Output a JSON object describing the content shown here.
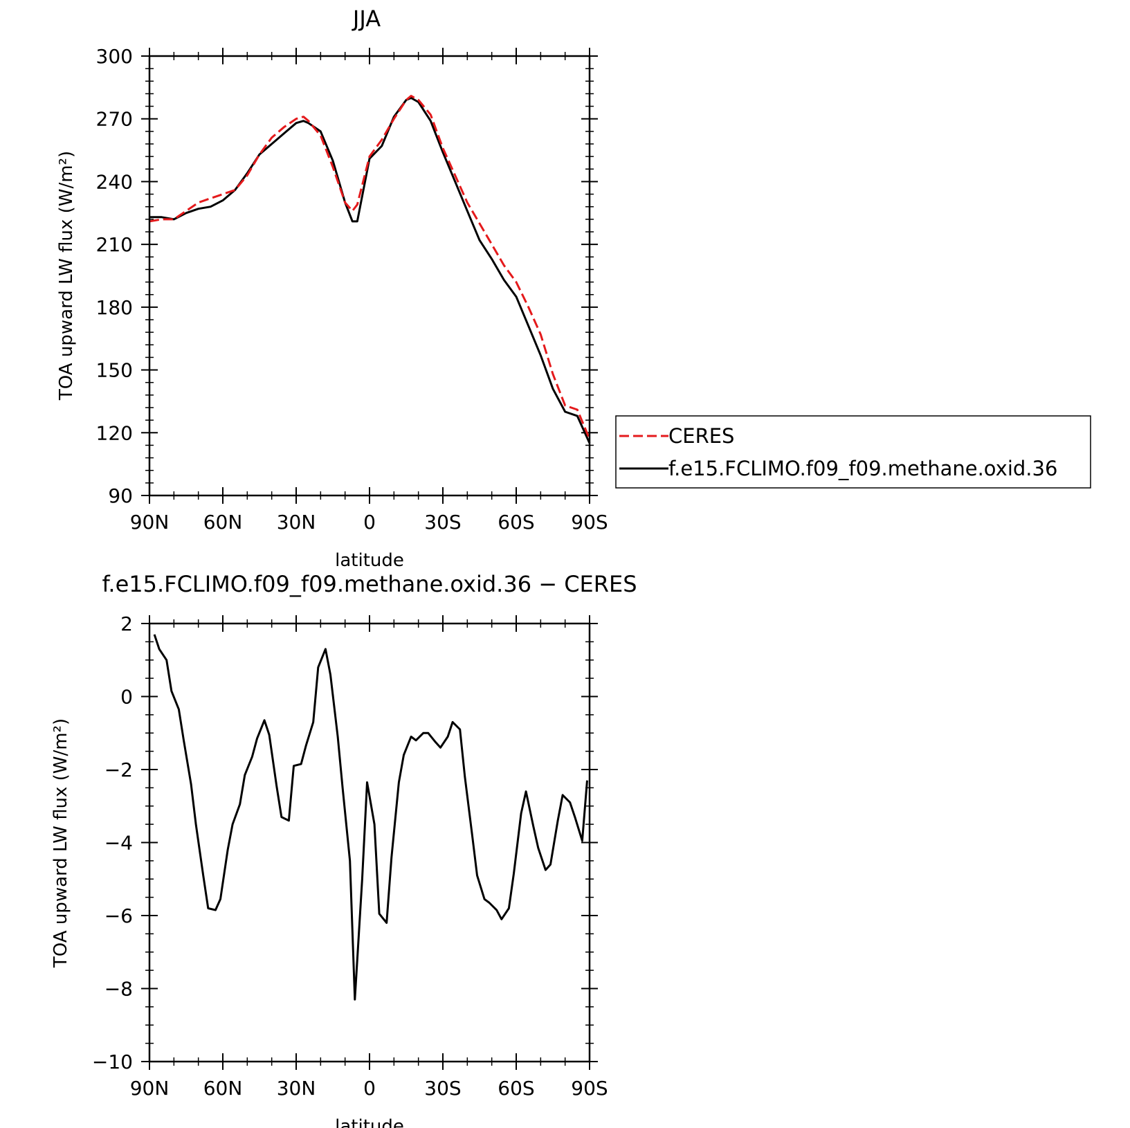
{
  "chart_data": [
    {
      "type": "line",
      "title": "JJA",
      "xlabel": "latitude",
      "ylabel": "TOA upward LW flux (W/m²)",
      "xlim": [
        -90,
        90
      ],
      "ylim": [
        90,
        300
      ],
      "x_ticks": [
        -90,
        -60,
        -30,
        0,
        30,
        60,
        90
      ],
      "x_tick_labels": [
        "90N",
        "60N",
        "30N",
        "0",
        "30S",
        "60S",
        "90S"
      ],
      "y_ticks": [
        90,
        120,
        150,
        180,
        210,
        240,
        270,
        300
      ],
      "y_tick_labels": [
        "90",
        "120",
        "150",
        "180",
        "210",
        "240",
        "270",
        "300"
      ],
      "legend": "outside-right",
      "series": [
        {
          "name": "CERES",
          "color": "#e41a1c",
          "dash": true,
          "x": [
            -90,
            -85,
            -80,
            -75,
            -70,
            -65,
            -60,
            -55,
            -50,
            -45,
            -40,
            -35,
            -30,
            -27,
            -25,
            -20,
            -15,
            -10,
            -7,
            -5,
            0,
            5,
            10,
            15,
            17,
            20,
            25,
            30,
            35,
            40,
            45,
            50,
            55,
            60,
            65,
            70,
            75,
            80,
            85,
            90
          ],
          "values": [
            221,
            222,
            222,
            226,
            230,
            232,
            234,
            236,
            243,
            253,
            261,
            266,
            270,
            271,
            269,
            262,
            247,
            230,
            226,
            229,
            252,
            260,
            270,
            279,
            281,
            279,
            272,
            256,
            243,
            230,
            220,
            210,
            200,
            192,
            180,
            167,
            148,
            133,
            131,
            117
          ],
          "legend_label": "CERES"
        },
        {
          "name": "f.e15.FCLIMO.f09_f09.methane.oxid.36",
          "color": "#000000",
          "dash": false,
          "x": [
            -90,
            -85,
            -80,
            -75,
            -70,
            -65,
            -60,
            -55,
            -50,
            -45,
            -40,
            -35,
            -30,
            -27,
            -25,
            -20,
            -15,
            -10,
            -7,
            -5,
            0,
            5,
            10,
            15,
            17,
            20,
            25,
            30,
            35,
            40,
            45,
            50,
            55,
            60,
            65,
            70,
            75,
            80,
            85,
            90
          ],
          "values": [
            223,
            223,
            222,
            225,
            227,
            228,
            231,
            236,
            244,
            253,
            258,
            263,
            268,
            269,
            268,
            264,
            250,
            230,
            221,
            221,
            251,
            257,
            271,
            279,
            280,
            278,
            269,
            254,
            240,
            226,
            212,
            203,
            193,
            185,
            171,
            157,
            141,
            130,
            128,
            115
          ],
          "legend_label": "f.e15.FCLIMO.f09_f09.methane.oxid.36"
        }
      ]
    },
    {
      "type": "line",
      "title": "f.e15.FCLIMO.f09_f09.methane.oxid.36 − CERES",
      "xlabel": "latitude",
      "ylabel": "TOA upward LW flux (W/m²)",
      "xlim": [
        -90,
        90
      ],
      "ylim": [
        -10,
        2
      ],
      "x_ticks": [
        -90,
        -60,
        -30,
        0,
        30,
        60,
        90
      ],
      "x_tick_labels": [
        "90N",
        "60N",
        "30N",
        "0",
        "30S",
        "60S",
        "90S"
      ],
      "y_ticks": [
        -10,
        -8,
        -6,
        -4,
        -2,
        0,
        2
      ],
      "y_tick_labels": [
        "−10",
        "−8",
        "−6",
        "−4",
        "−2",
        "0",
        "2"
      ],
      "series": [
        {
          "color": "#000000",
          "x": [
            -88,
            -86,
            -83,
            -81,
            -78,
            -76,
            -73,
            -71,
            -68,
            -66,
            -63,
            -61,
            -58,
            -56,
            -53,
            -51,
            -48,
            -46,
            -43,
            -41,
            -38,
            -36,
            -33,
            -31,
            -28,
            -26,
            -23,
            -21,
            -18,
            -16,
            -13,
            -11,
            -8,
            -6,
            -3,
            -1,
            2,
            4,
            7,
            9,
            12,
            14,
            17,
            19,
            22,
            24,
            27,
            29,
            32,
            34,
            37,
            39,
            42,
            44,
            47,
            49,
            52,
            54,
            57,
            59,
            62,
            64,
            67,
            69,
            72,
            74,
            77,
            79,
            82,
            84,
            87,
            89
          ],
          "values": [
            1.7,
            1.3,
            1.0,
            0.15,
            -0.35,
            -1.2,
            -2.4,
            -3.5,
            -4.9,
            -5.8,
            -5.85,
            -5.55,
            -4.2,
            -3.5,
            -2.95,
            -2.15,
            -1.65,
            -1.15,
            -0.65,
            -1.05,
            -2.45,
            -3.3,
            -3.4,
            -1.9,
            -1.85,
            -1.35,
            -0.7,
            0.8,
            1.3,
            0.6,
            -1.1,
            -2.5,
            -4.5,
            -8.3,
            -5.0,
            -2.35,
            -3.5,
            -5.95,
            -6.2,
            -4.4,
            -2.35,
            -1.6,
            -1.1,
            -1.2,
            -1.0,
            -1.0,
            -1.25,
            -1.4,
            -1.1,
            -0.7,
            -0.9,
            -2.2,
            -3.8,
            -4.9,
            -5.55,
            -5.65,
            -5.85,
            -6.1,
            -5.8,
            -4.85,
            -3.2,
            -2.6,
            -3.55,
            -4.15,
            -4.75,
            -4.6,
            -3.4,
            -2.7,
            -2.9,
            -3.3,
            -3.95,
            -2.3
          ]
        }
      ]
    }
  ]
}
